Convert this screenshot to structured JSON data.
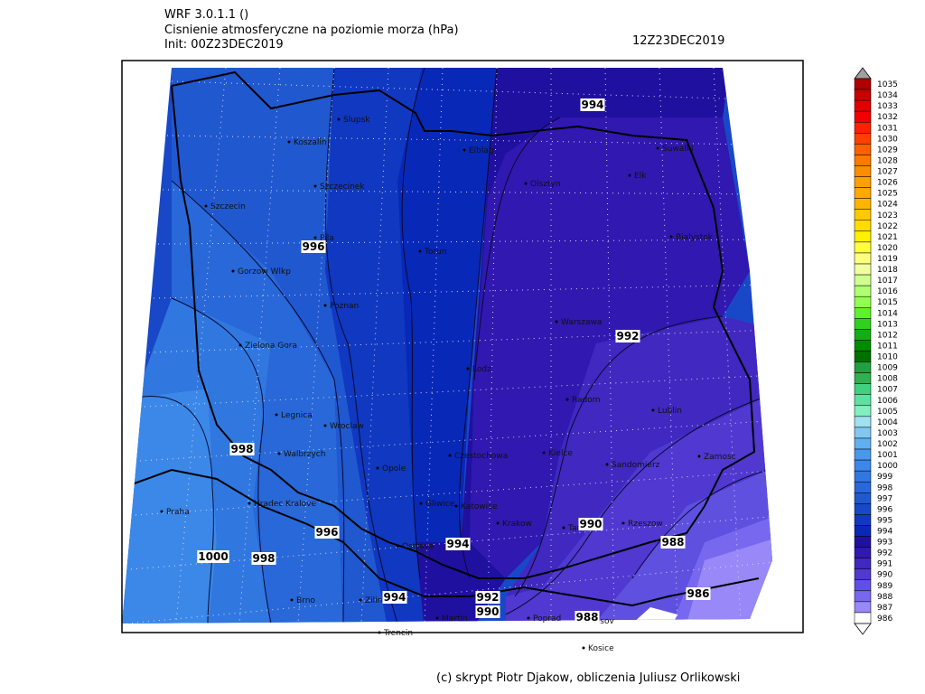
{
  "header": {
    "model": "WRF 3.0.1.1 ()",
    "title": "Cisnienie atmosferyczne na poziomie morza (hPa)",
    "init": "Init: 00Z23DEC2019",
    "valid": "12Z23DEC2019"
  },
  "cities": [
    "Slupsk",
    "Koszalin",
    "Elblag",
    "Olsztyn",
    "Suwalki",
    "Elk",
    "Szczecinek",
    "Szczecin",
    "Bialystok",
    "Pila",
    "Torun",
    "Gorzow Wlkp",
    "Poznan",
    "Warszawa",
    "Zielona Gora",
    "Lodz",
    "Radom",
    "Lublin",
    "Legnica",
    "Wroclaw",
    "Walbrzych",
    "Czestochowa",
    "Kielce",
    "Opole",
    "Zamosc",
    "Sandomierz",
    "Hradec Kralove",
    "Gliwice",
    "Katowice",
    "Praha",
    "Krakow",
    "Tarnow",
    "Rzeszow",
    "Ostrava",
    "Brno",
    "Zilina",
    "Martin",
    "Poprad",
    "Presov",
    "Trencin",
    "Kosice"
  ],
  "isobar_labels": [
    994,
    996,
    992,
    998,
    996,
    994,
    990,
    1000,
    998,
    994,
    992,
    990,
    988,
    986,
    988
  ],
  "colorbar": {
    "levels": [
      1035,
      1034,
      1033,
      1032,
      1031,
      1030,
      1029,
      1028,
      1027,
      1026,
      1025,
      1024,
      1023,
      1022,
      1021,
      1020,
      1019,
      1018,
      1017,
      1016,
      1015,
      1014,
      1013,
      1012,
      1011,
      1010,
      1009,
      1008,
      1007,
      1006,
      1005,
      1004,
      1003,
      1002,
      1001,
      1000,
      999,
      998,
      997,
      996,
      995,
      994,
      993,
      992,
      991,
      990,
      989,
      988,
      987,
      986
    ],
    "colors": [
      "#b00000",
      "#c80000",
      "#e00000",
      "#f00000",
      "#ff2000",
      "#ff4000",
      "#ff6000",
      "#ff7800",
      "#ff8c00",
      "#ffa000",
      "#ffaa00",
      "#ffb400",
      "#ffc800",
      "#ffdc00",
      "#fff000",
      "#ffff40",
      "#ffff80",
      "#f0ffa0",
      "#d0ff90",
      "#b0ff70",
      "#90ff50",
      "#60f030",
      "#30d020",
      "#10b010",
      "#008c00",
      "#007000",
      "#20a040",
      "#30b050",
      "#40d080",
      "#60e0a0",
      "#80f0c0",
      "#a0e0f0",
      "#80c8f0",
      "#60b0f0",
      "#4898f0",
      "#3c88e8",
      "#3078e0",
      "#2868d8",
      "#2058d0",
      "#1848c8",
      "#1038c0",
      "#0828b8",
      "#2010a0",
      "#3018b0",
      "#4028c0",
      "#5038d0",
      "#6050e0",
      "#7868f0",
      "#9888f8",
      "#ffffff"
    ]
  },
  "footer": "(c) skrypt Piotr Djakow, obliczenia Juliusz Orlikowski"
}
